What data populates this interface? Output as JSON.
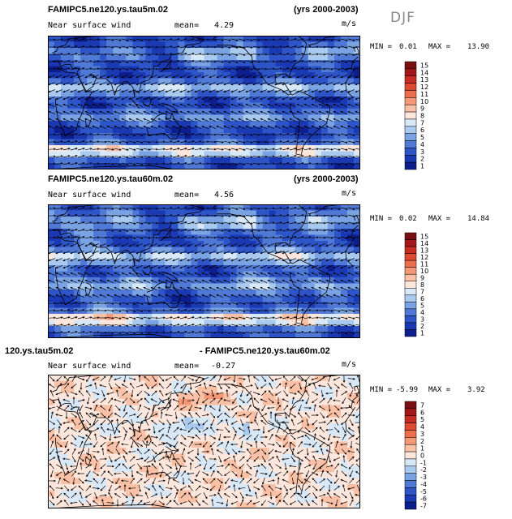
{
  "season": "DJF",
  "units": "m/s",
  "mean_label": "mean=",
  "min_label": "MIN =",
  "max_label": "MAX =",
  "chart_data": [
    {
      "type": "heatmap",
      "title": "FAMIPC5.ne120.ys.tau5m.02",
      "years": "(yrs 2000-2003)",
      "subtitle": "Near surface wind",
      "mean": "4.29",
      "min": "0.01",
      "max": "13.90",
      "colorbar_levels": [
        "15",
        "14",
        "13",
        "12",
        "11",
        "10",
        "9",
        "8",
        "7",
        "6",
        "5",
        "4",
        "3",
        "2",
        "1"
      ],
      "colorbar_colors": [
        "#7a0f12",
        "#a3171b",
        "#c72b22",
        "#dd4a2f",
        "#ec6e4d",
        "#f59877",
        "#fbc1a6",
        "#fde6dc",
        "#d9e8f7",
        "#a9c9ee",
        "#7aa3e3",
        "#5079d6",
        "#2e55c8",
        "#1a39b3",
        "#0d1e8f"
      ],
      "field": "wind_speed"
    },
    {
      "type": "heatmap",
      "title": "FAMIPC5.ne120.ys.tau60m.02",
      "years": "(yrs 2000-2003)",
      "subtitle": "Near surface wind",
      "mean": "4.56",
      "min": "0.02",
      "max": "14.84",
      "colorbar_levels": [
        "15",
        "14",
        "13",
        "12",
        "11",
        "10",
        "9",
        "8",
        "7",
        "6",
        "5",
        "4",
        "3",
        "2",
        "1"
      ],
      "colorbar_colors": [
        "#7a0f12",
        "#a3171b",
        "#c72b22",
        "#dd4a2f",
        "#ec6e4d",
        "#f59877",
        "#fbc1a6",
        "#fde6dc",
        "#d9e8f7",
        "#a9c9ee",
        "#7aa3e3",
        "#5079d6",
        "#2e55c8",
        "#1a39b3",
        "#0d1e8f"
      ],
      "field": "wind_speed"
    },
    {
      "type": "heatmap",
      "title_left": "120.ys.tau5m.02",
      "title_right": "- FAMIPC5.ne120.ys.tau60m.02",
      "subtitle": "Near surface wind",
      "mean": "-0.27",
      "min": "-5.99",
      "max": "3.92",
      "colorbar_levels": [
        "7",
        "6",
        "5",
        "4",
        "3",
        "2",
        "1",
        "0",
        "-1",
        "-2",
        "-3",
        "-4",
        "-5",
        "-6",
        "-7"
      ],
      "colorbar_colors": [
        "#7a0f12",
        "#a3171b",
        "#c72b22",
        "#dd4a2f",
        "#ec6e4d",
        "#f59877",
        "#fbc1a6",
        "#fde6dc",
        "#d9e8f7",
        "#a9c9ee",
        "#7aa3e3",
        "#5079d6",
        "#2e55c8",
        "#1a39b3",
        "#0d1e8f"
      ],
      "field": "difference"
    }
  ]
}
